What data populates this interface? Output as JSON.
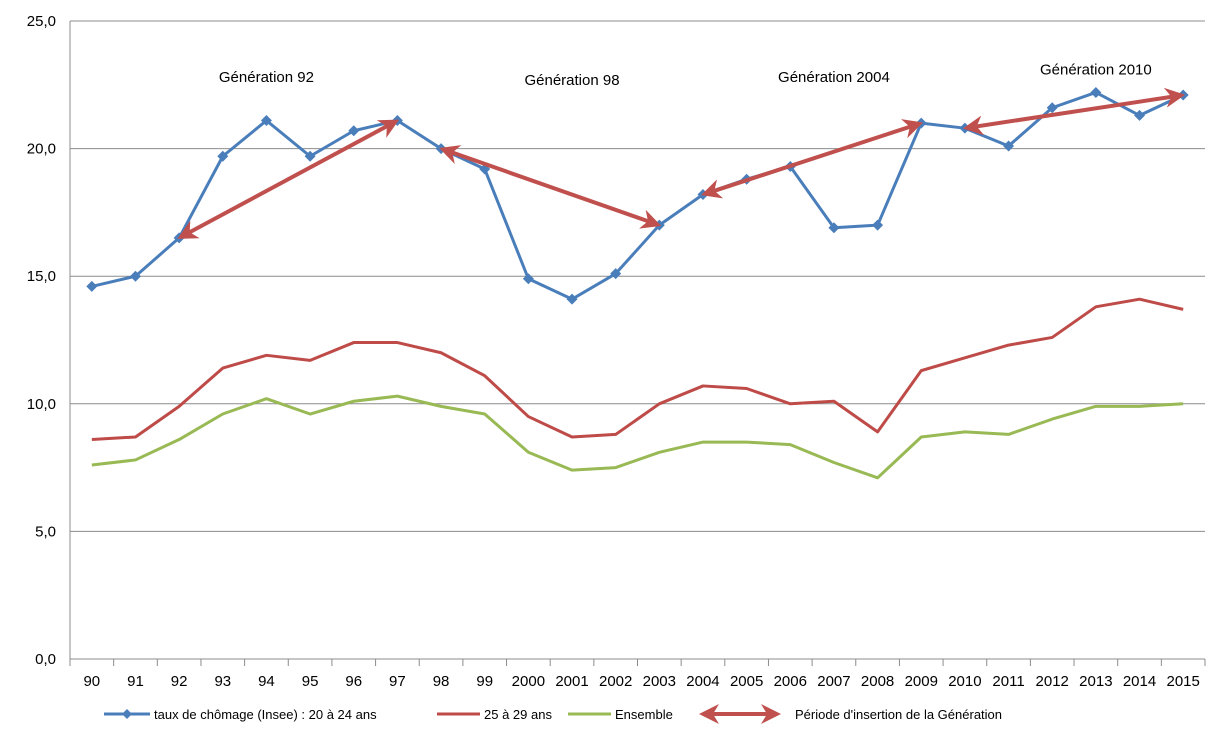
{
  "chart_data": {
    "type": "line",
    "title": "",
    "xlabel": "",
    "ylabel": "",
    "categories": [
      "90",
      "91",
      "92",
      "93",
      "94",
      "95",
      "96",
      "97",
      "98",
      "99",
      "2000",
      "2001",
      "2002",
      "2003",
      "2004",
      "2005",
      "2006",
      "2007",
      "2008",
      "2009",
      "2010",
      "2011",
      "2012",
      "2013",
      "2014",
      "2015"
    ],
    "ylim": [
      0,
      25
    ],
    "yticks": [
      0,
      5,
      10,
      15,
      20,
      25
    ],
    "ytick_labels": [
      "0,0",
      "5,0",
      "10,0",
      "15,0",
      "20,0",
      "25,0"
    ],
    "grid": "horizontal",
    "legend_placement": "bottom",
    "series": [
      {
        "name": "taux de chômage (Insee) : 20 à 24 ans",
        "color": "#4a7ebb",
        "marker": "diamond",
        "values": [
          14.6,
          15.0,
          16.5,
          19.7,
          21.1,
          19.7,
          20.7,
          21.1,
          20.0,
          19.2,
          14.9,
          14.1,
          15.1,
          17.0,
          18.2,
          18.8,
          19.3,
          16.9,
          17.0,
          21.0,
          20.8,
          20.1,
          21.6,
          22.2,
          21.3,
          22.1
        ]
      },
      {
        "name": "25 à 29 ans",
        "color": "#be4b48",
        "marker": "none",
        "values": [
          8.6,
          8.7,
          9.9,
          11.4,
          11.9,
          11.7,
          12.4,
          12.4,
          12.0,
          11.1,
          9.5,
          8.7,
          8.8,
          10.0,
          10.7,
          10.6,
          10.0,
          10.1,
          8.9,
          11.3,
          11.8,
          12.3,
          12.6,
          13.8,
          14.1,
          13.7
        ]
      },
      {
        "name": "Ensemble",
        "color": "#98b954",
        "marker": "none",
        "values": [
          7.6,
          7.8,
          8.6,
          9.6,
          10.2,
          9.6,
          10.1,
          10.3,
          9.9,
          9.6,
          8.1,
          7.4,
          7.5,
          8.1,
          8.5,
          8.5,
          8.4,
          7.7,
          7.1,
          8.7,
          8.9,
          8.8,
          9.4,
          9.9,
          9.9,
          10.0
        ]
      }
    ],
    "arrows": [
      {
        "from": {
          "x": "92",
          "y": 16.5
        },
        "to": {
          "x": "97",
          "y": 21.1
        }
      },
      {
        "from": {
          "x": "98",
          "y": 20.0
        },
        "to": {
          "x": "2003",
          "y": 17.0
        }
      },
      {
        "from": {
          "x": "2004",
          "y": 18.2
        },
        "to": {
          "x": "2009",
          "y": 21.0
        }
      },
      {
        "from": {
          "x": "2010",
          "y": 20.8
        },
        "to": {
          "x": "2015",
          "y": 22.1
        }
      }
    ],
    "arrow_color": "#c0504d",
    "annotations": [
      {
        "text": "Génération 92",
        "x": "94",
        "y": 22.6
      },
      {
        "text": "Génération 98",
        "x": "2001",
        "y": 22.5
      },
      {
        "text": "Génération 2004",
        "x": "2007",
        "y": 22.6
      },
      {
        "text": "Génération 2010",
        "x": "2013",
        "y": 22.9
      }
    ],
    "legend": {
      "arrow_label": "Période d'insertion de la Génération"
    }
  }
}
